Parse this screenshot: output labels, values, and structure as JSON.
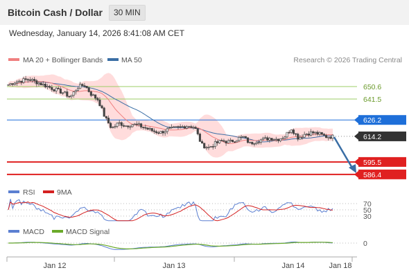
{
  "header": {
    "title": "Bitcoin Cash / Dollar",
    "interval": "30 MIN",
    "datetime": "Wednesday, January 14, 2026 8:41:08 AM CET"
  },
  "colors": {
    "ma20": "#f08080",
    "bollinger": "#ffd0d0",
    "ma50": "#3a6ea5",
    "resistance": "#9ccc65",
    "pivot": "#1e6fd9",
    "support": "#e02020",
    "last": "#333333",
    "rsi": "#5b7fd1",
    "rsi_ma": "#d42020",
    "macd": "#5b7fd1",
    "macd_signal": "#6aaa2a",
    "arrow": "#3a6ea5"
  },
  "chart_data": [
    {
      "id": "price",
      "type": "candlestick",
      "legend": [
        {
          "label": "MA 20 + Bollinger Bands",
          "color": "#f08080"
        },
        {
          "label": "MA 50",
          "color": "#3a6ea5"
        }
      ],
      "source": "Research © 2026 Trading Central",
      "x_labels": [
        "Jan 12",
        "Jan 13",
        "Jan 14",
        "Jan 18"
      ],
      "ylim": [
        580,
        660
      ],
      "levels": [
        {
          "label": "650.6",
          "value": 650.6,
          "type": "resistance"
        },
        {
          "label": "641.5",
          "value": 641.5,
          "type": "resistance"
        },
        {
          "label": "626.2",
          "value": 626.2,
          "type": "pivot"
        },
        {
          "label": "614.2",
          "value": 614.2,
          "type": "last"
        },
        {
          "label": "595.5",
          "value": 595.5,
          "type": "support"
        },
        {
          "label": "586.4",
          "value": 586.4,
          "type": "support"
        }
      ],
      "close_path": [
        652,
        654,
        655,
        656,
        654,
        652,
        650,
        648,
        646,
        643,
        650,
        652,
        645,
        641,
        628,
        620,
        624,
        622,
        623,
        622,
        620,
        618,
        617,
        619,
        620,
        621,
        622,
        621,
        608,
        606,
        609,
        611,
        610,
        612,
        614,
        609,
        611,
        612,
        613,
        612,
        614,
        620,
        613,
        616,
        617,
        616,
        614,
        614
      ]
    },
    {
      "id": "rsi",
      "type": "line",
      "legend": [
        {
          "label": "RSI",
          "color": "#5b7fd1"
        },
        {
          "label": "9MA",
          "color": "#d42020"
        }
      ],
      "levels": [
        "70",
        "50",
        "30"
      ]
    },
    {
      "id": "macd",
      "type": "line",
      "legend": [
        {
          "label": "MACD",
          "color": "#5b7fd1"
        },
        {
          "label": "MACD Signal",
          "color": "#6aaa2a"
        }
      ],
      "levels": [
        "0"
      ]
    }
  ]
}
